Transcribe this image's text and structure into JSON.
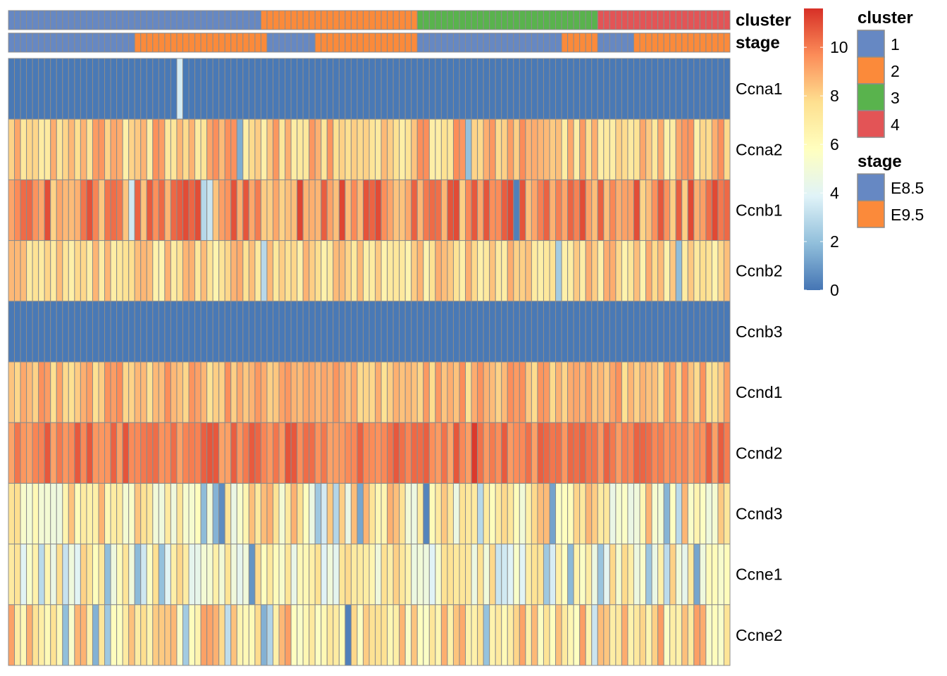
{
  "chart_data": {
    "type": "heatmap",
    "n_cells": 120,
    "annotation_tracks": [
      {
        "name": "cluster",
        "segments": [
          {
            "value": "1",
            "count": 42
          },
          {
            "value": "2",
            "count": 26
          },
          {
            "value": "3",
            "count": 30
          },
          {
            "value": "4",
            "count": 22
          }
        ]
      },
      {
        "name": "stage",
        "segments": [
          {
            "value": "E8.5",
            "count": 21
          },
          {
            "value": "E9.5",
            "count": 22
          },
          {
            "value": "E8.5",
            "count": 8
          },
          {
            "value": "E9.5",
            "count": 17
          },
          {
            "value": "E8.5",
            "count": 24
          },
          {
            "value": "E9.5",
            "count": 6
          },
          {
            "value": "E8.5",
            "count": 6
          },
          {
            "value": "E9.5",
            "count": 16
          }
        ]
      }
    ],
    "rows": [
      {
        "gene": "Ccna1",
        "base": 0.1,
        "variation": 0.0,
        "sparse_low": 0.0,
        "override": [
          [
            28,
            3.6
          ]
        ]
      },
      {
        "gene": "Ccna2",
        "base": 8.2,
        "variation": 1.5,
        "sparse_low": 0.02,
        "override": [
          [
            76,
            2.0
          ]
        ]
      },
      {
        "gene": "Ccnb1",
        "base": 9.6,
        "variation": 1.6,
        "sparse_low": 0.03,
        "override": [
          [
            84,
            0.3
          ]
        ]
      },
      {
        "gene": "Ccnb2",
        "base": 7.7,
        "variation": 1.3,
        "sparse_low": 0.02,
        "override": [
          [
            91,
            2.4
          ]
        ]
      },
      {
        "gene": "Ccnb3",
        "base": 0.1,
        "variation": 0.0,
        "sparse_low": 0.0,
        "override": []
      },
      {
        "gene": "Ccnd1",
        "base": 8.6,
        "variation": 1.1,
        "sparse_low": 0.0,
        "override": []
      },
      {
        "gene": "Ccnd2",
        "base": 10.0,
        "variation": 0.9,
        "sparse_low": 0.0,
        "override": [
          [
            77,
            11.4
          ]
        ]
      },
      {
        "gene": "Ccnd3",
        "base": 6.7,
        "variation": 2.2,
        "sparse_low": 0.09,
        "override": [
          [
            69,
            0.4
          ],
          [
            35,
            0.6
          ]
        ]
      },
      {
        "gene": "Ccne1",
        "base": 6.0,
        "variation": 2.1,
        "sparse_low": 0.1,
        "override": [
          [
            40,
            0.8
          ]
        ]
      },
      {
        "gene": "Ccne2",
        "base": 7.4,
        "variation": 2.0,
        "sparse_low": 0.07,
        "override": [
          [
            56,
            0.3
          ]
        ]
      }
    ],
    "color_scale": {
      "min": 0,
      "max": 11.6,
      "ticks": [
        0,
        2,
        4,
        6,
        8,
        10
      ],
      "colors": [
        "#4575b4",
        "#91bfdb",
        "#e0f3f8",
        "#ffffbf",
        "#fee090",
        "#fc8d59",
        "#d73027"
      ]
    },
    "legends": [
      {
        "title": "cluster",
        "entries": [
          {
            "label": "1",
            "color": "#6688c3"
          },
          {
            "label": "2",
            "color": "#fb8a3a"
          },
          {
            "label": "3",
            "color": "#59b34d"
          },
          {
            "label": "4",
            "color": "#e35456"
          }
        ]
      },
      {
        "title": "stage",
        "entries": [
          {
            "label": "E8.5",
            "color": "#6688c3"
          },
          {
            "label": "E9.5",
            "color": "#fb8a3a"
          }
        ]
      }
    ],
    "cell_border_color": "#8c8c8c"
  }
}
